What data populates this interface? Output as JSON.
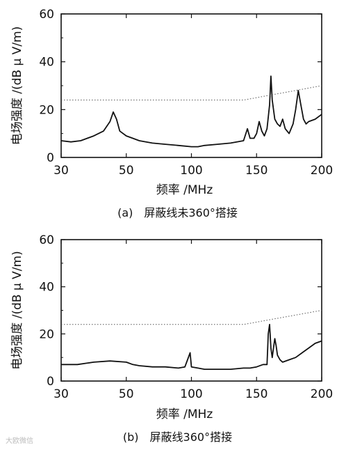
{
  "watermark": "大欧微信",
  "chart_data": [
    {
      "type": "line",
      "caption": "(a)　屏蔽线未360°搭接",
      "xlabel": "频率 /MHz",
      "ylabel": "电场强度 /(dB μ V/m)",
      "x_ticks": [
        "30",
        "50",
        "100",
        "150",
        "200"
      ],
      "y_ticks": [
        "0",
        "20",
        "40",
        "60"
      ],
      "ylim": [
        0,
        60
      ],
      "xlim": [
        30,
        200
      ],
      "grid": false,
      "series": [
        {
          "style": "solid",
          "x": [
            30,
            33,
            36,
            40,
            43,
            45,
            46,
            47,
            48,
            50,
            55,
            60,
            70,
            80,
            90,
            100,
            105,
            110,
            120,
            130,
            140,
            143,
            145,
            148,
            150,
            152,
            154,
            156,
            158,
            160,
            161,
            162,
            164,
            166,
            168,
            170,
            172,
            175,
            178,
            180,
            182,
            184,
            186,
            188,
            190,
            195,
            200
          ],
          "y": [
            7,
            6.5,
            7,
            9,
            11,
            15,
            19,
            16,
            11,
            9,
            8,
            7,
            6,
            5.5,
            5,
            4.5,
            4.5,
            5,
            5.5,
            6,
            7,
            12,
            8,
            8,
            10,
            15,
            11,
            9,
            12,
            22,
            34,
            24,
            16,
            14,
            13,
            16,
            12,
            10,
            14,
            20,
            28,
            22,
            16,
            14,
            15,
            16,
            18
          ]
        },
        {
          "style": "dotted",
          "x": [
            30,
            50,
            100,
            140,
            150,
            160,
            170,
            180,
            190,
            200
          ],
          "y": [
            24,
            24,
            24,
            24,
            25,
            26,
            27,
            28,
            29,
            30
          ]
        }
      ]
    },
    {
      "type": "line",
      "caption": "(b)　屏蔽线360°搭接",
      "xlabel": "频率 /MHz",
      "ylabel": "电场强度 /(dB μ V/m)",
      "x_ticks": [
        "30",
        "50",
        "100",
        "150",
        "200"
      ],
      "y_ticks": [
        "0",
        "20",
        "40",
        "60"
      ],
      "ylim": [
        0,
        60
      ],
      "xlim": [
        30,
        200
      ],
      "grid": false,
      "series": [
        {
          "style": "solid",
          "x": [
            30,
            35,
            40,
            45,
            50,
            55,
            60,
            70,
            80,
            90,
            95,
            97,
            99,
            100,
            105,
            110,
            120,
            130,
            140,
            145,
            150,
            155,
            158,
            159,
            160,
            161,
            162,
            163,
            164,
            165,
            166,
            168,
            170,
            175,
            180,
            185,
            190,
            195,
            200
          ],
          "y": [
            7,
            7,
            8,
            8.5,
            8,
            7,
            6.5,
            6,
            6,
            5.5,
            6,
            9,
            12,
            6,
            5.5,
            5,
            5,
            5,
            5.5,
            5.5,
            6,
            7,
            7,
            20,
            24,
            14,
            10,
            14,
            18,
            15,
            11,
            9,
            8,
            9,
            10,
            12,
            14,
            16,
            17
          ]
        },
        {
          "style": "dotted",
          "x": [
            30,
            50,
            100,
            140,
            150,
            160,
            170,
            180,
            190,
            200
          ],
          "y": [
            24,
            24,
            24,
            24,
            25,
            26,
            27,
            28,
            29,
            30
          ]
        }
      ]
    }
  ]
}
